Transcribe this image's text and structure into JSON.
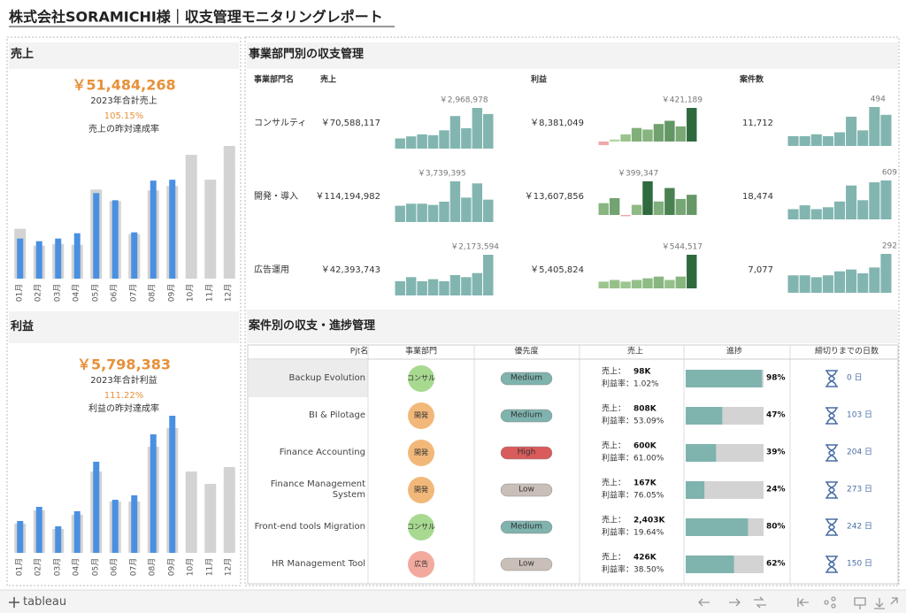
{
  "header": {
    "title": "株式会社SORAMICHI様｜収支管理モニタリングレポート"
  },
  "sales_panel": {
    "title": "売上",
    "total": "￥51,484,268",
    "total_label": "2023年合計売上",
    "rate": "105.15%",
    "rate_label": "売上の昨対達成率",
    "chart": {
      "type": "bar",
      "categories": [
        "01月",
        "02月",
        "03月",
        "04月",
        "05月",
        "06月",
        "07月",
        "08月",
        "09月",
        "10月",
        "11月",
        "12月"
      ],
      "series": [
        {
          "color": "#d3d3d3",
          "values": [
            4500000,
            2970000,
            3140000,
            3060000,
            8040000,
            7000000,
            4020000,
            7960000,
            8360000,
            11180000,
            8930000,
            11980000
          ]
        },
        {
          "color": "#4a90e2",
          "values": [
            3620000,
            3380000,
            3620000,
            4100000,
            7720000,
            7080000,
            4180000,
            8850000,
            8930000,
            null,
            null,
            null
          ]
        }
      ]
    }
  },
  "profit_panel": {
    "title": "利益",
    "total": "￥5,798,383",
    "total_label": "2023年合計利益",
    "rate": "111.22%",
    "rate_label": "利益の昨対達成率",
    "chart": {
      "type": "bar",
      "categories": [
        "01月",
        "02月",
        "03月",
        "04月",
        "05月",
        "06月",
        "07月",
        "08月",
        "09月",
        "10月",
        "11月",
        "12月"
      ],
      "series": [
        {
          "color": "#d3d3d3",
          "values": [
            281000,
            408000,
            230000,
            366000,
            782000,
            493000,
            493000,
            1020000,
            1199000,
            782000,
            663000,
            825000
          ]
        },
        {
          "color": "#4a90e2",
          "values": [
            306000,
            442000,
            255000,
            400000,
            876000,
            510000,
            553000,
            1139000,
            1318000,
            null,
            null,
            null
          ]
        }
      ]
    }
  },
  "dept_panel": {
    "title": "事業部門別の収支管理",
    "headers": [
      "事業部門名",
      "売上",
      "利益",
      "案件数"
    ],
    "bar_color": "#82b5b0",
    "profit_colors": {
      "negative": "#f0a9a9",
      "low": "#b8dda3",
      "high": "#2e6a3e"
    },
    "rows": [
      {
        "name": "コンサルティ",
        "sales": "￥70,588,117",
        "profit": "￥8,381,049",
        "count": "11,712",
        "sales_bars": {
          "values": [
            742000,
            891000,
            1039000,
            980000,
            1336000,
            2375000,
            1484000,
            2968978,
            2524000
          ],
          "max_label": "￥2,968,978"
        },
        "profit_bars": {
          "values": [
            -45000,
            25000,
            90000,
            170000,
            150000,
            220000,
            260000,
            190000,
            421189
          ],
          "max_label": "￥421,189"
        },
        "count_bars": {
          "values": [
            124,
            124,
            148,
            124,
            173,
            371,
            198,
            494,
            395
          ],
          "max_label": "494"
        }
      },
      {
        "name": "開発・導入",
        "sales": "￥114,194,982",
        "profit": "￥13,607,856",
        "count": "18,474",
        "sales_bars": {
          "values": [
            1496000,
            1683000,
            1683000,
            1571000,
            1870000,
            3739395,
            2244000,
            3552000,
            2057000
          ],
          "max_label": "￥3,739,395"
        },
        "profit_bars": {
          "values": [
            140000,
            200000,
            -15000,
            120000,
            399347,
            160000,
            320000,
            190000,
            240000
          ],
          "max_label": "￥399,347"
        },
        "count_bars": {
          "values": [
            160,
            220,
            160,
            190,
            280,
            530,
            300,
            580,
            609
          ],
          "max_label": "609"
        }
      },
      {
        "name": "広告運用",
        "sales": "￥42,393,743",
        "profit": "￥5,405,824",
        "count": "7,077",
        "sales_bars": {
          "values": [
            761000,
            978000,
            761000,
            869000,
            761000,
            1087000,
            978000,
            1195000,
            2173594
          ],
          "max_label": "￥2,173,594"
        },
        "profit_bars": {
          "values": [
            109000,
            136000,
            109000,
            136000,
            163000,
            191000,
            136000,
            191000,
            544517
          ],
          "max_label": "￥544,517"
        },
        "count_bars": {
          "values": [
            131,
            131,
            117,
            131,
            161,
            175,
            146,
            190,
            292
          ],
          "max_label": "292"
        }
      }
    ]
  },
  "project_panel": {
    "title": "案件別の収支・進捗管理",
    "headers": [
      "Pjt名",
      "事業部門",
      "優先度",
      "売上",
      "進捗",
      "締切りまでの日数"
    ],
    "sales_prefix": "売上：",
    "margin_prefix": "利益率：",
    "dept_colors": {
      "コンサル": "#a8d990",
      "開発": "#f2b87a",
      "広告": "#f2aa9e"
    },
    "priority_colors": {
      "Medium": "#7fb3ae",
      "High": "#d95b5b",
      "Low": "#c9bfb8"
    },
    "progress_color": "#7fb3ae",
    "rows": [
      {
        "name": "Backup Evolution",
        "dept": "コンサル",
        "priority": "Medium",
        "sales": "98K",
        "margin": "1.02%",
        "progress": 98,
        "progress_label": "98%",
        "days": "0 日"
      },
      {
        "name": "BI & Pilotage",
        "dept": "開発",
        "priority": "Medium",
        "sales": "808K",
        "margin": "53.09%",
        "progress": 47,
        "progress_label": "47%",
        "days": "103 日"
      },
      {
        "name": "Finance Accounting",
        "dept": "開発",
        "priority": "High",
        "sales": "600K",
        "margin": "61.00%",
        "progress": 39,
        "progress_label": "39%",
        "days": "204 日"
      },
      {
        "name": "Finance Management System",
        "dept": "開発",
        "priority": "Low",
        "sales": "167K",
        "margin": "76.05%",
        "progress": 24,
        "progress_label": "24%",
        "days": "273 日"
      },
      {
        "name": "Front-end tools Migration",
        "dept": "コンサル",
        "priority": "Medium",
        "sales": "2,403K",
        "margin": "19.64%",
        "progress": 80,
        "progress_label": "80%",
        "days": "242 日"
      },
      {
        "name": "HR Management Tool",
        "dept": "広告",
        "priority": "Low",
        "sales": "426K",
        "margin": "38.50%",
        "progress": 62,
        "progress_label": "62%",
        "days": "150 日"
      }
    ]
  },
  "footer": {
    "brand": "tableau"
  }
}
